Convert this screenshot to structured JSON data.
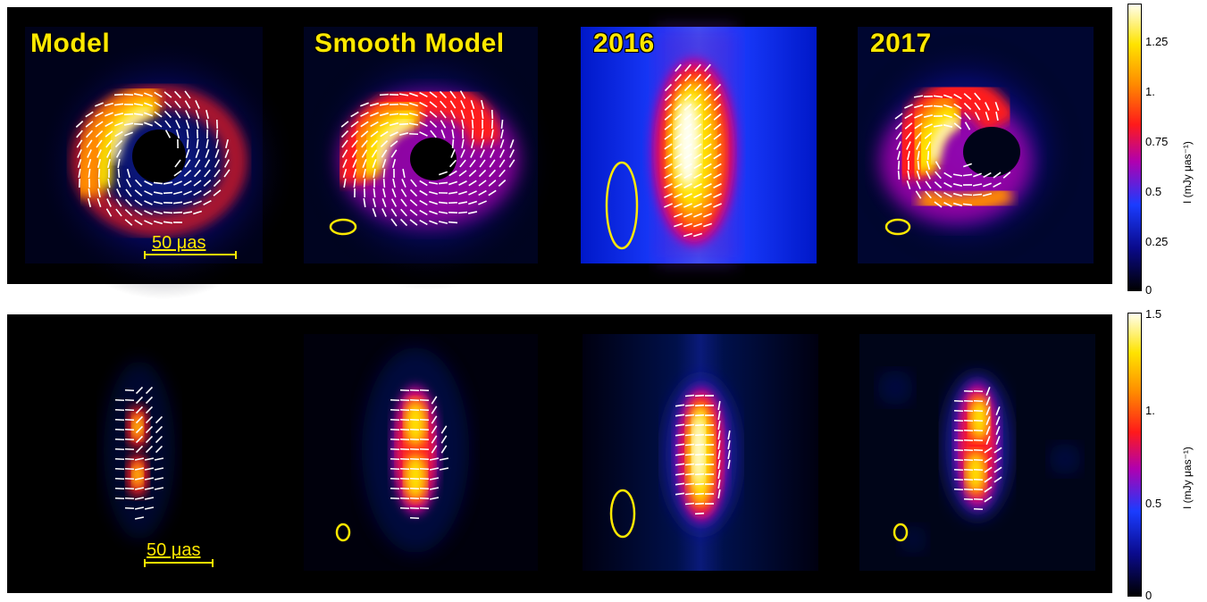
{
  "figure": {
    "row1": {
      "labels": [
        "Model",
        "Smooth Model",
        "2016",
        "2017"
      ],
      "scale_bar": "50 μas",
      "colorbar": {
        "title": "I  (mJy μas⁻¹)",
        "ticks": [
          "1.25",
          "1.",
          "0.75",
          "0.5",
          "0.25",
          "0"
        ]
      }
    },
    "row2": {
      "scale_bar": "50 μas",
      "colorbar": {
        "title": "I  (mJy μas⁻¹)",
        "ticks": [
          "1.5",
          "1.",
          "0.5",
          "0"
        ]
      }
    },
    "colors": {
      "label": "#ffe800",
      "background": "#000000",
      "ticks": "#ffffff",
      "colormap": [
        "#000000",
        "#0a0a8c",
        "#1a3cff",
        "#b000b0",
        "#ff1a1a",
        "#ff8a00",
        "#ffe300",
        "#fffff0"
      ]
    }
  }
}
